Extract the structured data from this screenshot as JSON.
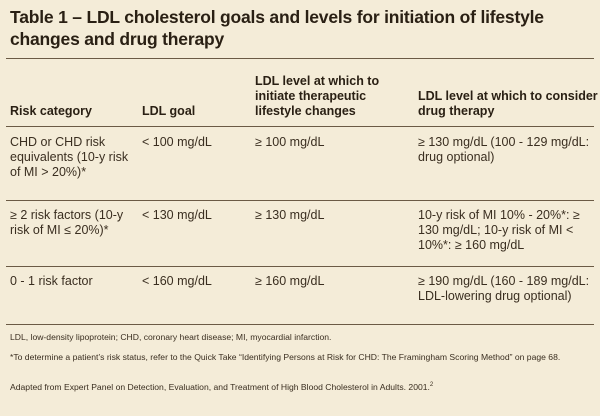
{
  "title": "Table 1 – LDL cholesterol goals and levels for initiation of lifestyle changes and drug therapy",
  "columns": [
    "Risk category",
    "LDL goal",
    "LDL level at which to initiate therapeutic lifestyle changes",
    "LDL level at which to consider drug therapy"
  ],
  "rows": [
    {
      "risk": "CHD or CHD risk equivalents (10-y risk of MI > 20%)*",
      "goal": "< 100 mg/dL",
      "tlc": "≥ 100 mg/dL",
      "drug": "≥ 130 mg/dL (100 - 129 mg/dL: drug optional)"
    },
    {
      "risk": "≥ 2 risk factors (10-y risk of MI ≤ 20%)*",
      "goal": "< 130 mg/dL",
      "tlc": "≥ 130 mg/dL",
      "drug": "10-y risk of MI 10% - 20%*: ≥ 130 mg/dL; 10-y risk of MI < 10%*: ≥ 160 mg/dL"
    },
    {
      "risk": "0 - 1 risk factor",
      "goal": "< 160 mg/dL",
      "tlc": "≥ 160 mg/dL",
      "drug": "≥ 190 mg/dL (160 - 189 mg/dL: LDL-lowering drug optional)"
    }
  ],
  "footnotes": {
    "abbreviations": "LDL, low-density lipoprotein; CHD, coronary heart disease; MI, myocardial infarction.",
    "asterisk": "*To determine a patient’s risk status, refer to the Quick Take “Identifying Persons at Risk for CHD: The Framingham Scoring Method” on page 68.",
    "source": "Adapted from Expert Panel on Detection, Evaluation, and Treatment of High Blood Cholesterol in Adults. 2001.",
    "source_ref": "2"
  },
  "colors": {
    "background": "#f4ecd8",
    "text": "#3a2e20",
    "rule": "#6b5a45"
  }
}
